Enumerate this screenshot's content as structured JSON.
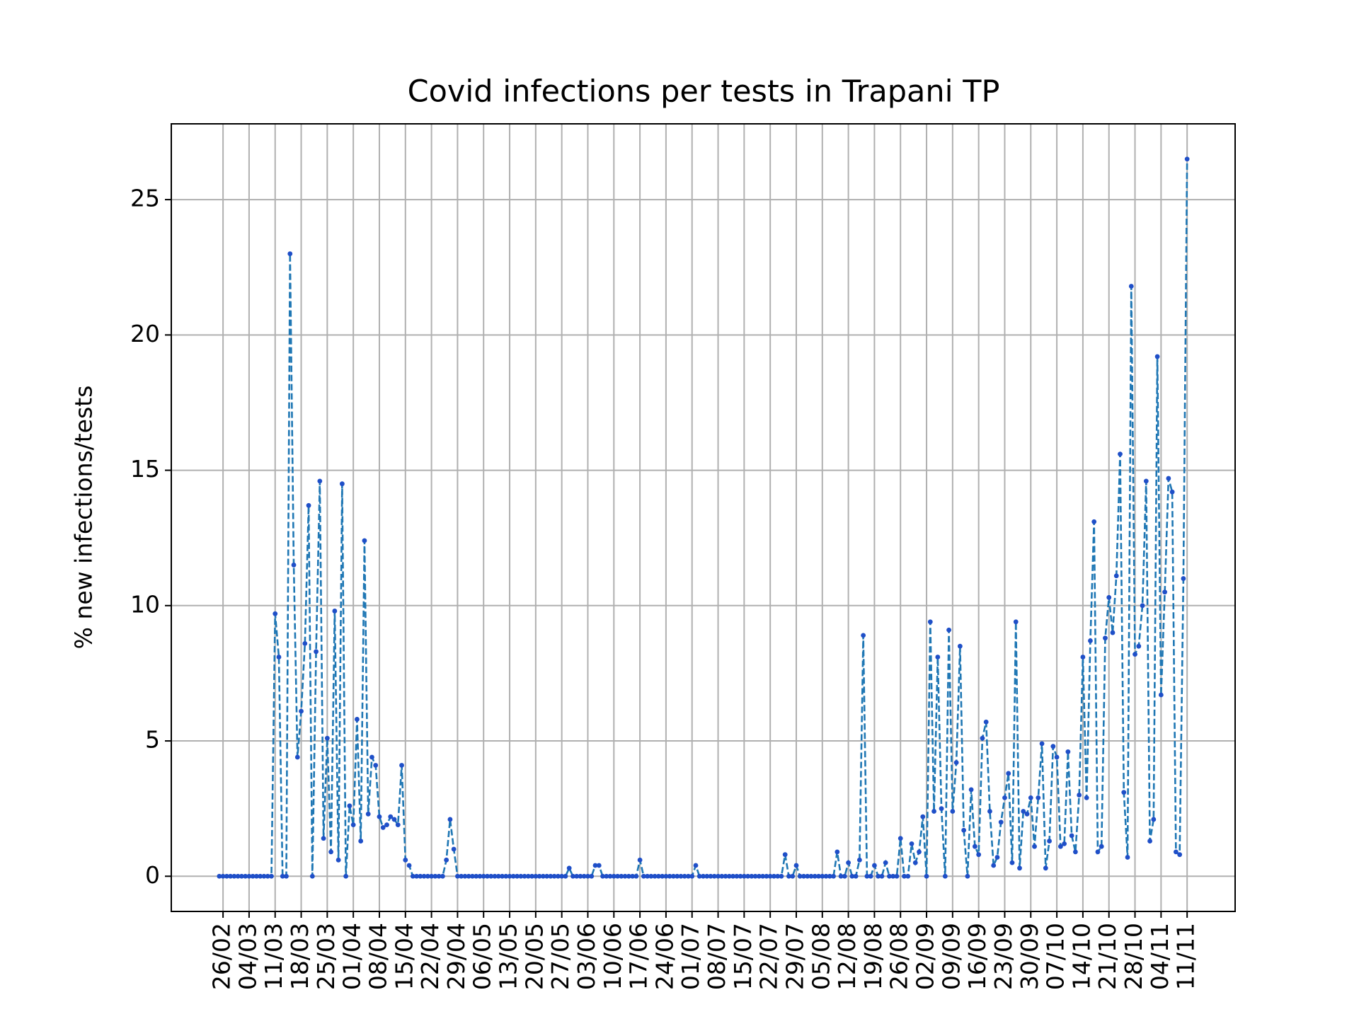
{
  "chart_data": {
    "type": "line",
    "title": "Covid infections per tests in Trapani TP",
    "ylabel": "% new infections/tests",
    "categories": [
      null,
      "26/02",
      null,
      null,
      null,
      null,
      null,
      null,
      "04/03",
      null,
      null,
      null,
      null,
      null,
      null,
      "11/03",
      null,
      null,
      null,
      null,
      null,
      null,
      "18/03",
      null,
      null,
      null,
      null,
      null,
      null,
      "25/03",
      null,
      null,
      null,
      null,
      null,
      null,
      "01/04",
      null,
      null,
      null,
      null,
      null,
      null,
      "08/04",
      null,
      null,
      null,
      null,
      null,
      null,
      "15/04",
      null,
      null,
      null,
      null,
      null,
      null,
      "22/04",
      null,
      null,
      null,
      null,
      null,
      null,
      "29/04",
      null,
      null,
      null,
      null,
      null,
      null,
      "06/05",
      null,
      null,
      null,
      null,
      null,
      null,
      "13/05",
      null,
      null,
      null,
      null,
      null,
      null,
      "20/05",
      null,
      null,
      null,
      null,
      null,
      null,
      "27/05",
      null,
      null,
      null,
      null,
      null,
      null,
      "03/06",
      null,
      null,
      null,
      null,
      null,
      null,
      "10/06",
      null,
      null,
      null,
      null,
      null,
      null,
      "17/06",
      null,
      null,
      null,
      null,
      null,
      null,
      "24/06",
      null,
      null,
      null,
      null,
      null,
      null,
      "01/07",
      null,
      null,
      null,
      null,
      null,
      null,
      "08/07",
      null,
      null,
      null,
      null,
      null,
      null,
      "15/07",
      null,
      null,
      null,
      null,
      null,
      null,
      "22/07",
      null,
      null,
      null,
      null,
      null,
      null,
      "29/07",
      null,
      null,
      null,
      null,
      null,
      null,
      "05/08",
      null,
      null,
      null,
      null,
      null,
      null,
      "12/08",
      null,
      null,
      null,
      null,
      null,
      null,
      "19/08",
      null,
      null,
      null,
      null,
      null,
      null,
      "26/08",
      null,
      null,
      null,
      null,
      null,
      null,
      "02/09",
      null,
      null,
      null,
      null,
      null,
      null,
      "09/09",
      null,
      null,
      null,
      null,
      null,
      null,
      "16/09",
      null,
      null,
      null,
      null,
      null,
      null,
      "23/09",
      null,
      null,
      null,
      null,
      null,
      null,
      "30/09",
      null,
      null,
      null,
      null,
      null,
      null,
      "07/10",
      null,
      null,
      null,
      null,
      null,
      null,
      "14/10",
      null,
      null,
      null,
      null,
      null,
      null,
      "21/10",
      null,
      null,
      null,
      null,
      null,
      null,
      "28/10",
      null,
      null,
      null,
      null,
      null,
      null,
      "04/11",
      null,
      null,
      null,
      null,
      null,
      null,
      "11/11"
    ],
    "series": [
      {
        "color": "#1f77b4",
        "marker_color": "#1f4fc8",
        "values": [
          0,
          0,
          0,
          0,
          0,
          0,
          0,
          0,
          0,
          0,
          0,
          0,
          0,
          0,
          0,
          9.7,
          8.1,
          0,
          0,
          23.0,
          11.5,
          4.4,
          6.1,
          8.6,
          13.7,
          0,
          8.3,
          14.6,
          1.4,
          5.1,
          0.9,
          9.8,
          0.6,
          14.5,
          0,
          2.6,
          1.9,
          5.8,
          1.3,
          12.4,
          2.3,
          4.4,
          4.1,
          2.2,
          1.8,
          1.9,
          2.2,
          2.1,
          1.9,
          4.1,
          0.6,
          0.4,
          0,
          0,
          0,
          0,
          0,
          0,
          0,
          0,
          0,
          0.6,
          2.1,
          1.0,
          0,
          0,
          0,
          0,
          0,
          0,
          0,
          0,
          0,
          0,
          0,
          0,
          0,
          0,
          0,
          0,
          0,
          0,
          0,
          0,
          0,
          0,
          0,
          0,
          0,
          0,
          0,
          0,
          0,
          0,
          0.3,
          0,
          0,
          0,
          0,
          0,
          0,
          0.4,
          0.4,
          0,
          0,
          0,
          0,
          0,
          0,
          0,
          0,
          0,
          0,
          0.6,
          0,
          0,
          0,
          0,
          0,
          0,
          0,
          0,
          0,
          0,
          0,
          0,
          0,
          0,
          0.4,
          0,
          0,
          0,
          0,
          0,
          0,
          0,
          0,
          0,
          0,
          0,
          0,
          0,
          0,
          0,
          0,
          0,
          0,
          0,
          0,
          0,
          0,
          0,
          0.8,
          0,
          0,
          0.4,
          0,
          0,
          0,
          0,
          0,
          0,
          0,
          0,
          0,
          0,
          0.9,
          0,
          0,
          0.5,
          0,
          0,
          0.6,
          8.9,
          0,
          0,
          0.4,
          0,
          0,
          0.5,
          0,
          0,
          0,
          1.4,
          0,
          0,
          1.2,
          0.5,
          0.9,
          2.2,
          0,
          9.4,
          2.4,
          8.1,
          2.5,
          0,
          9.1,
          2.4,
          4.2,
          8.5,
          1.7,
          0,
          3.2,
          1.1,
          0.8,
          5.1,
          5.7,
          2.4,
          0.4,
          0.7,
          2.0,
          2.9,
          3.8,
          0.5,
          9.4,
          0.3,
          2.4,
          2.3,
          2.9,
          1.1,
          2.9,
          4.9,
          0.3,
          1.3,
          4.8,
          4.4,
          1.1,
          1.2,
          4.6,
          1.5,
          0.9,
          3.0,
          8.1,
          2.9,
          8.7,
          13.1,
          0.9,
          1.1,
          8.8,
          10.3,
          9.0,
          11.1,
          15.6,
          3.1,
          0.7,
          21.8,
          8.2,
          8.5,
          10.0,
          14.6,
          1.3,
          2.1,
          19.2,
          6.7,
          10.5,
          14.7,
          14.2,
          0.9,
          0.8,
          11.0,
          26.5
        ]
      }
    ],
    "ylim": [
      -1.3,
      27.8
    ],
    "yticks": [
      0,
      5,
      10,
      15,
      20,
      25
    ],
    "grid": true,
    "line_style": "dashed"
  }
}
